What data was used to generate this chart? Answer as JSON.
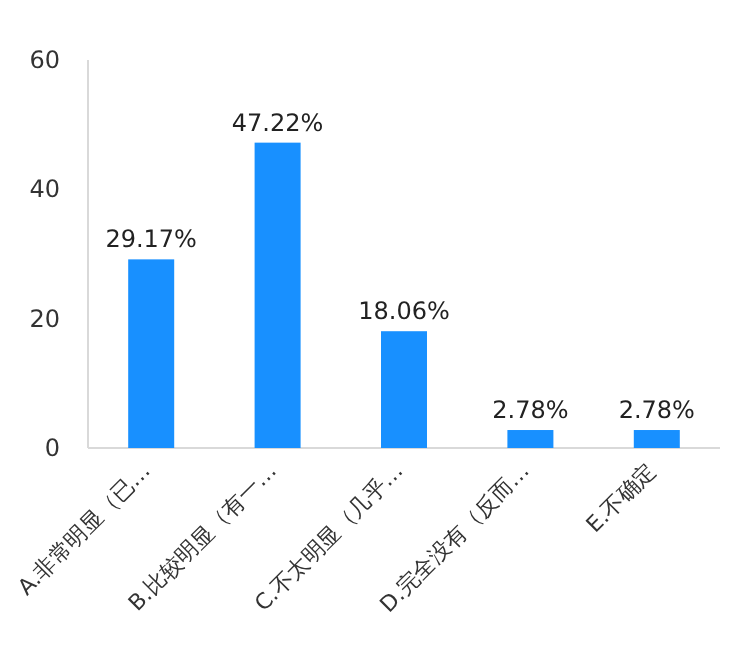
{
  "chart_data": {
    "type": "bar",
    "categories": [
      "A.非常明显（已…",
      "B.比较明显（有一…",
      "C.不太明显（几乎…",
      "D.完全没有（反而…",
      "E.不确定"
    ],
    "values": [
      29.17,
      47.22,
      18.06,
      2.78,
      2.78
    ],
    "value_labels": [
      "29.17%",
      "47.22%",
      "18.06%",
      "2.78%",
      "2.78%"
    ],
    "color": "#1890ff",
    "ylim": [
      0,
      60
    ],
    "yticks": [
      0,
      20,
      40,
      60
    ],
    "grid": false
  }
}
